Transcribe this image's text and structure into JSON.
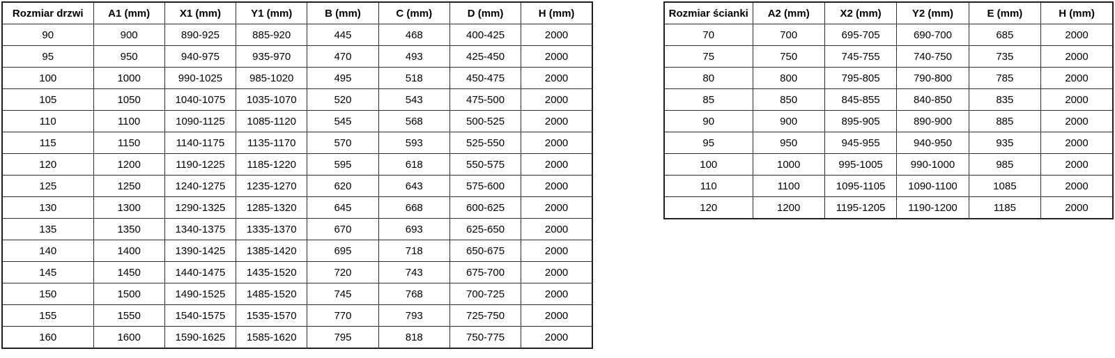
{
  "page": {
    "background_color": "#ffffff",
    "text_color": "#000000",
    "border_color": "#1f1f1f"
  },
  "tables": {
    "door_table": {
      "title": "Rozmiar drzwi",
      "headers": [
        "Rozmiar drzwi",
        "A1 (mm)",
        "X1 (mm)",
        "Y1 (mm)",
        "B (mm)",
        "C (mm)",
        "D (mm)",
        "H (mm)"
      ],
      "rows": [
        [
          "90",
          "900",
          "890-925",
          "885-920",
          "445",
          "468",
          "400-425",
          "2000"
        ],
        [
          "95",
          "950",
          "940-975",
          "935-970",
          "470",
          "493",
          "425-450",
          "2000"
        ],
        [
          "100",
          "1000",
          "990-1025",
          "985-1020",
          "495",
          "518",
          "450-475",
          "2000"
        ],
        [
          "105",
          "1050",
          "1040-1075",
          "1035-1070",
          "520",
          "543",
          "475-500",
          "2000"
        ],
        [
          "110",
          "1100",
          "1090-1125",
          "1085-1120",
          "545",
          "568",
          "500-525",
          "2000"
        ],
        [
          "115",
          "1150",
          "1140-1175",
          "1135-1170",
          "570",
          "593",
          "525-550",
          "2000"
        ],
        [
          "120",
          "1200",
          "1190-1225",
          "1185-1220",
          "595",
          "618",
          "550-575",
          "2000"
        ],
        [
          "125",
          "1250",
          "1240-1275",
          "1235-1270",
          "620",
          "643",
          "575-600",
          "2000"
        ],
        [
          "130",
          "1300",
          "1290-1325",
          "1285-1320",
          "645",
          "668",
          "600-625",
          "2000"
        ],
        [
          "135",
          "1350",
          "1340-1375",
          "1335-1370",
          "670",
          "693",
          "625-650",
          "2000"
        ],
        [
          "140",
          "1400",
          "1390-1425",
          "1385-1420",
          "695",
          "718",
          "650-675",
          "2000"
        ],
        [
          "145",
          "1450",
          "1440-1475",
          "1435-1520",
          "720",
          "743",
          "675-700",
          "2000"
        ],
        [
          "150",
          "1500",
          "1490-1525",
          "1485-1520",
          "745",
          "768",
          "700-725",
          "2000"
        ],
        [
          "155",
          "1550",
          "1540-1575",
          "1535-1570",
          "770",
          "793",
          "725-750",
          "2000"
        ],
        [
          "160",
          "1600",
          "1590-1625",
          "1585-1620",
          "795",
          "818",
          "750-775",
          "2000"
        ]
      ]
    },
    "wall_table": {
      "title": "Rozmiar ścianki",
      "headers": [
        "Rozmiar ścianki",
        "A2 (mm)",
        "X2 (mm)",
        "Y2 (mm)",
        "E (mm)",
        "H (mm)"
      ],
      "rows": [
        [
          "70",
          "700",
          "695-705",
          "690-700",
          "685",
          "2000"
        ],
        [
          "75",
          "750",
          "745-755",
          "740-750",
          "735",
          "2000"
        ],
        [
          "80",
          "800",
          "795-805",
          "790-800",
          "785",
          "2000"
        ],
        [
          "85",
          "850",
          "845-855",
          "840-850",
          "835",
          "2000"
        ],
        [
          "90",
          "900",
          "895-905",
          "890-900",
          "885",
          "2000"
        ],
        [
          "95",
          "950",
          "945-955",
          "940-950",
          "935",
          "2000"
        ],
        [
          "100",
          "1000",
          "995-1005",
          "990-1000",
          "985",
          "2000"
        ],
        [
          "110",
          "1100",
          "1095-1105",
          "1090-1100",
          "1085",
          "2000"
        ],
        [
          "120",
          "1200",
          "1195-1205",
          "1190-1200",
          "1185",
          "2000"
        ]
      ]
    }
  }
}
